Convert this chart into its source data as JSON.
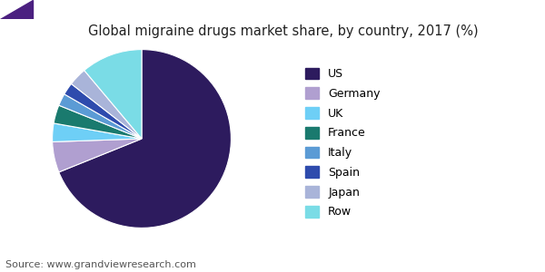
{
  "title": "Global migraine drugs market share, by country, 2017 (%)",
  "source": "Source: www.grandviewresearch.com",
  "labels": [
    "US",
    "Germany",
    "UK",
    "France",
    "Italy",
    "Spain",
    "Japan",
    "Row"
  ],
  "values": [
    62,
    5,
    3,
    3,
    2,
    2,
    3,
    10
  ],
  "colors": [
    "#2D1B5E",
    "#B09FD0",
    "#6ECFF6",
    "#1A7A6E",
    "#5B9BD5",
    "#2E4BAD",
    "#A9B4D9",
    "#7ADCE6"
  ],
  "startangle": 90,
  "title_fontsize": 10.5,
  "legend_fontsize": 9,
  "source_fontsize": 8,
  "background_color": "#ffffff",
  "header_color": "#6B3FA0"
}
